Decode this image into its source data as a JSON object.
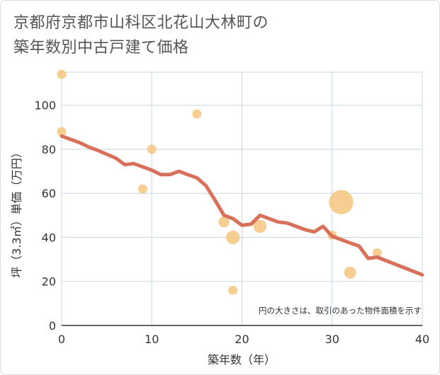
{
  "title": {
    "line1": "京都府京都市山科区北花山大林町の",
    "line2": "築年数別中古戸建て価格"
  },
  "note": "円の大きさは、取引のあった物件面積を示す",
  "colors": {
    "line": "#d9705a",
    "bubble": "#f5c57e",
    "grid": "#c9d6e3",
    "axis": "#333333"
  },
  "chart_data": {
    "type": "scatter",
    "xlabel": "築年数（年）",
    "ylabel": "坪（3.3㎡）単価（万円）",
    "xlim": [
      0,
      40
    ],
    "ylim": [
      0,
      115
    ],
    "xticks": [
      "0",
      "10",
      "20",
      "30",
      "40"
    ],
    "yticks": [
      "0",
      "20",
      "40",
      "60",
      "80",
      "100"
    ],
    "grid": true,
    "bubbles": [
      {
        "x": 0,
        "y": 114,
        "size": 1
      },
      {
        "x": 0,
        "y": 88,
        "size": 1
      },
      {
        "x": 10,
        "y": 80,
        "size": 1
      },
      {
        "x": 9,
        "y": 62,
        "size": 1
      },
      {
        "x": 15,
        "y": 96,
        "size": 1
      },
      {
        "x": 18,
        "y": 47,
        "size": 1.4
      },
      {
        "x": 19,
        "y": 40,
        "size": 2.2
      },
      {
        "x": 19,
        "y": 16,
        "size": 1
      },
      {
        "x": 22,
        "y": 45,
        "size": 2
      },
      {
        "x": 30,
        "y": 41,
        "size": 1
      },
      {
        "x": 31,
        "y": 56,
        "size": 7
      },
      {
        "x": 32,
        "y": 24,
        "size": 1.7
      },
      {
        "x": 35,
        "y": 33,
        "size": 1
      }
    ],
    "trend": {
      "x": [
        0,
        2,
        3,
        4,
        6,
        7,
        8,
        10,
        11,
        12,
        13,
        14,
        15,
        16,
        17,
        18,
        19,
        20,
        21,
        22,
        23,
        24,
        25,
        26,
        27,
        28,
        29,
        30,
        31,
        32,
        33,
        34,
        35,
        40
      ],
      "y": [
        86,
        83,
        81,
        79.5,
        76,
        73,
        73.5,
        70.5,
        68.5,
        68.5,
        70,
        68.5,
        67,
        63.5,
        57,
        50,
        48.5,
        45.5,
        46,
        50,
        48.5,
        47,
        46.5,
        45,
        43.5,
        42.5,
        45,
        40.5,
        39,
        37.5,
        36,
        30.5,
        31,
        23
      ]
    }
  }
}
